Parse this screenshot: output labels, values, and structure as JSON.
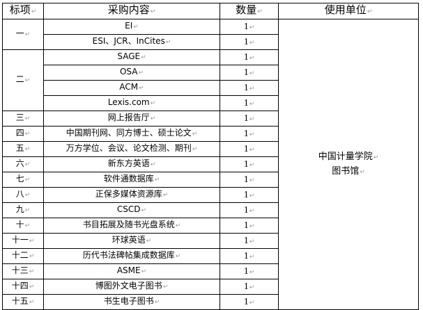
{
  "headers": [
    "标项",
    "采购内容",
    "数量",
    "使用单位"
  ],
  "unit": {
    "line1": "中国计量学院",
    "line2": "图书馆"
  },
  "groups": [
    {
      "id": "一",
      "items": [
        {
          "content": "EI",
          "qty": "1"
        },
        {
          "content": "ESI、JCR、InCites",
          "qty": "1"
        }
      ]
    },
    {
      "id": "二",
      "items": [
        {
          "content": "SAGE",
          "qty": "1"
        },
        {
          "content": "OSA",
          "qty": "1"
        },
        {
          "content": "ACM",
          "qty": "1"
        },
        {
          "content": "Lexis.com",
          "qty": "1"
        }
      ]
    },
    {
      "id": "三",
      "items": [
        {
          "content": "网上报告厅",
          "qty": "1"
        }
      ]
    },
    {
      "id": "四",
      "items": [
        {
          "content": "中国期刊网、同方博士、硕士论文",
          "qty": "1"
        }
      ]
    },
    {
      "id": "五",
      "items": [
        {
          "content": "万方学位、会议、论文检测、期刊",
          "qty": "1"
        }
      ]
    },
    {
      "id": "六",
      "items": [
        {
          "content": "新东方英语",
          "qty": "1"
        }
      ]
    },
    {
      "id": "七",
      "items": [
        {
          "content": "软件通数据库",
          "qty": "1"
        }
      ]
    },
    {
      "id": "八",
      "items": [
        {
          "content": "正保多媒体资源库",
          "qty": "1"
        }
      ]
    },
    {
      "id": "九",
      "items": [
        {
          "content": "CSCD",
          "qty": "1"
        }
      ]
    },
    {
      "id": "十",
      "items": [
        {
          "content": "书目拓展及随书光盘系统",
          "qty": "1"
        }
      ]
    },
    {
      "id": "十一",
      "items": [
        {
          "content": "环球英语",
          "qty": "1"
        }
      ]
    },
    {
      "id": "十二",
      "items": [
        {
          "content": "历代书法碑帖集成数据库",
          "qty": "1"
        }
      ]
    },
    {
      "id": "十三",
      "items": [
        {
          "content": "ASME",
          "qty": "1"
        }
      ]
    },
    {
      "id": "十四",
      "items": [
        {
          "content": "博图外文电子图书",
          "qty": "1"
        }
      ]
    },
    {
      "id": "十五",
      "items": [
        {
          "content": "书生电子图书",
          "qty": "1"
        }
      ]
    }
  ]
}
